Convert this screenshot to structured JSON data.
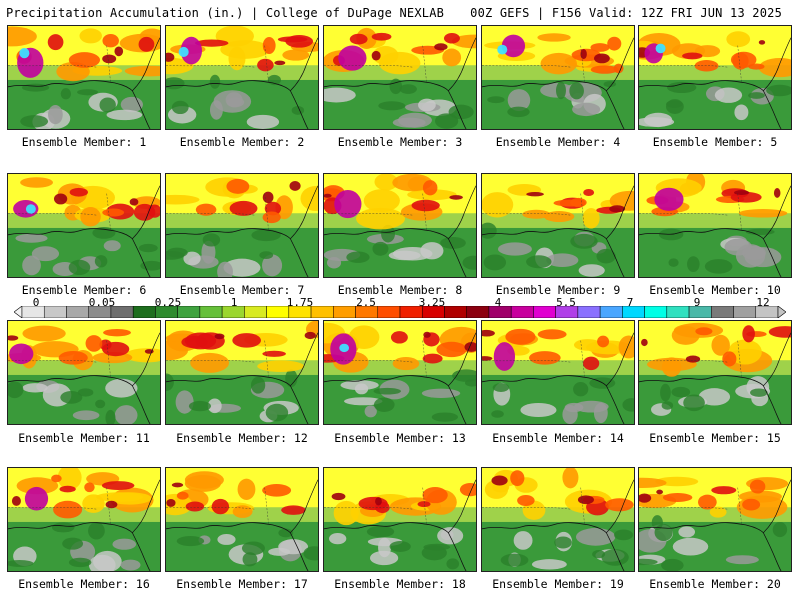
{
  "header": {
    "left": "Precipitation Accumulation (in.) | College of DuPage NEXLAB",
    "right": "00Z GEFS | F156 Valid: 12Z FRI JUN 13 2025"
  },
  "panel_label_prefix": "Ensemble Member: ",
  "panels": [
    {
      "label": "Ensemble Member: 1"
    },
    {
      "label": "Ensemble Member: 2"
    },
    {
      "label": "Ensemble Member: 3"
    },
    {
      "label": "Ensemble Member: 4"
    },
    {
      "label": "Ensemble Member: 5"
    },
    {
      "label": "Ensemble Member: 6"
    },
    {
      "label": "Ensemble Member: 7"
    },
    {
      "label": "Ensemble Member: 8"
    },
    {
      "label": "Ensemble Member: 9"
    },
    {
      "label": "Ensemble Member: 10"
    },
    {
      "label": "Ensemble Member: 11"
    },
    {
      "label": "Ensemble Member: 12"
    },
    {
      "label": "Ensemble Member: 13"
    },
    {
      "label": "Ensemble Member: 14"
    },
    {
      "label": "Ensemble Member: 15"
    },
    {
      "label": "Ensemble Member: 16"
    },
    {
      "label": "Ensemble Member: 17"
    },
    {
      "label": "Ensemble Member: 18"
    },
    {
      "label": "Ensemble Member: 19"
    },
    {
      "label": "Ensemble Member: 20"
    }
  ],
  "colorbar": {
    "tick_labels": [
      "0",
      "0.05",
      "0.25",
      "1",
      "1.75",
      "2.5",
      "3.25",
      "4",
      "5.5",
      "7",
      "9",
      "12"
    ],
    "colors": [
      "#e6e6e6",
      "#c8c8c8",
      "#a8a8a8",
      "#8c8c8c",
      "#6e6e6e",
      "#1e6e1e",
      "#2e8b2e",
      "#3fa33f",
      "#66c03a",
      "#9bd62e",
      "#d8ea22",
      "#ffff00",
      "#ffe200",
      "#ffc000",
      "#ff9d00",
      "#ff7800",
      "#ff4e00",
      "#f02000",
      "#d80000",
      "#b00000",
      "#8c0010",
      "#a0006a",
      "#c8009e",
      "#e000d0",
      "#b040e8",
      "#8a70ff",
      "#4aa6ff",
      "#00d8ff",
      "#00ffe6",
      "#30e0c0",
      "#4ab8a8",
      "#7a7a7a",
      "#a0a0a0",
      "#c4c4c4"
    ]
  }
}
